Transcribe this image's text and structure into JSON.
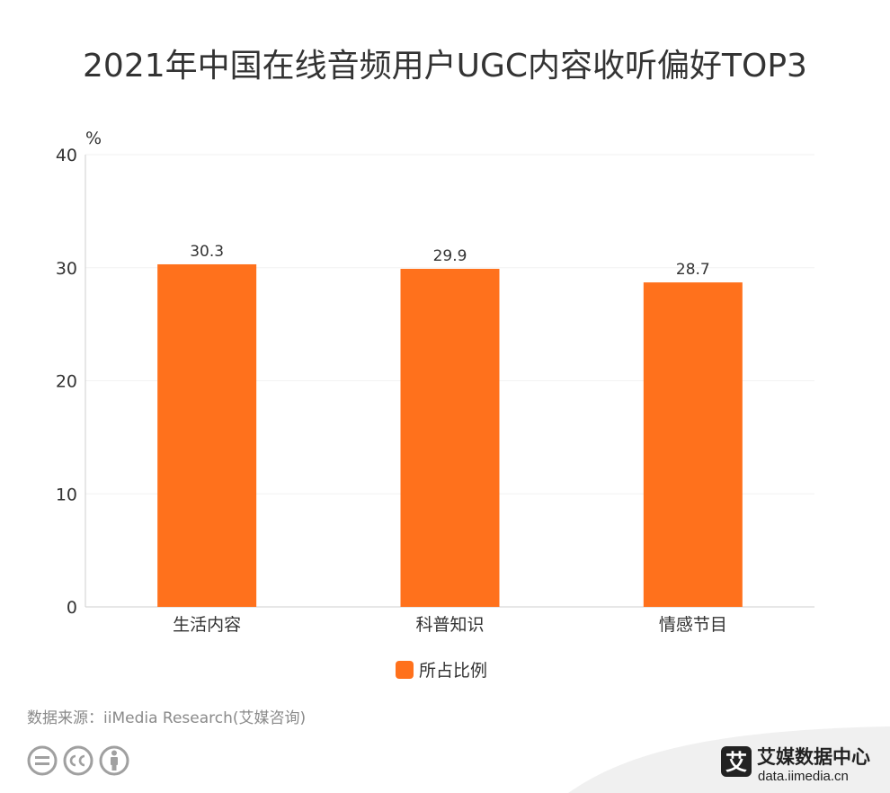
{
  "chart_data": {
    "type": "bar",
    "title": "2021年中国在线音频用户UGC内容收听偏好TOP3",
    "ylabel": "%",
    "ylim": [
      0,
      40
    ],
    "yticks": [
      0,
      10,
      20,
      30,
      40
    ],
    "categories": [
      "生活内容",
      "科普知识",
      "情感节目"
    ],
    "series": [
      {
        "name": "所占比例",
        "values": [
          30.3,
          29.9,
          28.7
        ],
        "color": "#ff711c"
      }
    ],
    "grid": true,
    "legend": "bottom-center"
  },
  "footer": {
    "source": "数据来源：iiMedia Research(艾媒咨询)",
    "cc_icons": [
      "equals-icon",
      "cc-icon",
      "person-icon"
    ]
  },
  "brand": {
    "logo_char": "艾",
    "name": "艾媒数据中心",
    "url": "data.iimedia.cn"
  },
  "colors": {
    "bar": "#ff711c",
    "text": "#333333",
    "muted": "#8a8a8a"
  }
}
